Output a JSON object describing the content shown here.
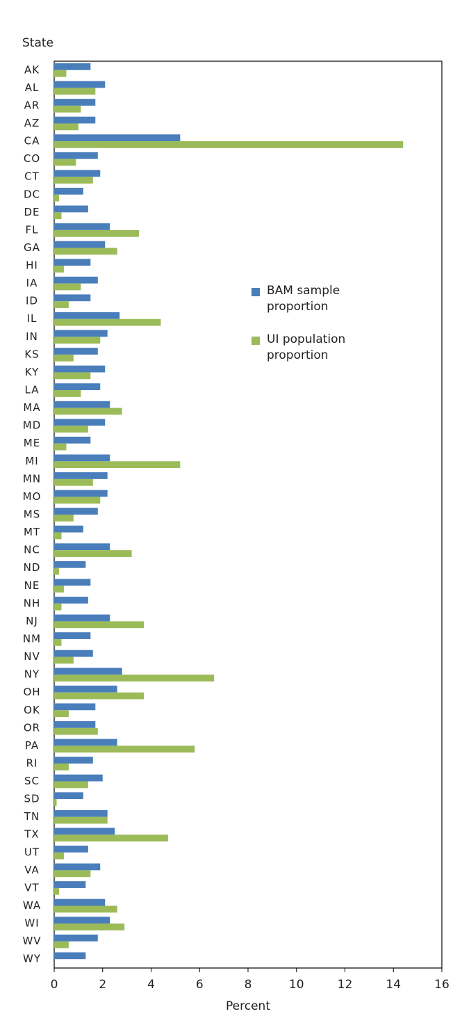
{
  "chart_data": {
    "type": "barh",
    "y_axis_label": "State",
    "x_axis_label": "Percent",
    "categories": [
      "AK",
      "AL",
      "AR",
      "AZ",
      "CA",
      "CO",
      "CT",
      "DC",
      "DE",
      "FL",
      "GA",
      "HI",
      "IA",
      "ID",
      "IL",
      "IN",
      "KS",
      "KY",
      "LA",
      "MA",
      "MD",
      "ME",
      "MI",
      "MN",
      "MO",
      "MS",
      "MT",
      "NC",
      "ND",
      "NE",
      "NH",
      "NJ",
      "NM",
      "NV",
      "NY",
      "OH",
      "OK",
      "OR",
      "PA",
      "RI",
      "SC",
      "SD",
      "TN",
      "TX",
      "UT",
      "VA",
      "VT",
      "WA",
      "WI",
      "WV",
      "WY"
    ],
    "series": [
      {
        "name": "BAM sample proportion",
        "color": "#4a7ebb",
        "values": [
          1.5,
          2.1,
          1.7,
          1.7,
          5.2,
          1.8,
          1.9,
          1.2,
          1.4,
          2.3,
          2.1,
          1.5,
          1.8,
          1.5,
          2.7,
          2.2,
          1.8,
          2.1,
          1.9,
          2.3,
          2.1,
          1.5,
          2.3,
          2.2,
          2.2,
          1.8,
          1.2,
          2.3,
          1.3,
          1.5,
          1.4,
          2.3,
          1.5,
          1.6,
          2.8,
          2.6,
          1.7,
          1.7,
          2.6,
          1.6,
          2.0,
          1.2,
          2.2,
          2.5,
          1.4,
          1.9,
          1.3,
          2.1,
          2.3,
          1.8,
          1.3
        ]
      },
      {
        "name": "UI population proportion",
        "color": "#9bbb59",
        "values": [
          0.5,
          1.7,
          1.1,
          1.0,
          14.4,
          0.9,
          1.6,
          0.2,
          0.3,
          3.5,
          2.6,
          0.4,
          1.1,
          0.6,
          4.4,
          1.9,
          0.8,
          1.5,
          1.1,
          2.8,
          1.4,
          0.5,
          5.2,
          1.6,
          1.9,
          0.8,
          0.3,
          3.2,
          0.2,
          0.4,
          0.3,
          3.7,
          0.3,
          0.8,
          6.6,
          3.7,
          0.6,
          1.8,
          5.8,
          0.6,
          1.4,
          0.1,
          2.2,
          4.7,
          0.4,
          1.5,
          0.2,
          2.6,
          2.9,
          0.6,
          0
        ]
      }
    ],
    "xlim": [
      0,
      16
    ],
    "xticks": [
      0,
      2,
      4,
      6,
      8,
      10,
      12,
      14,
      16
    ]
  }
}
